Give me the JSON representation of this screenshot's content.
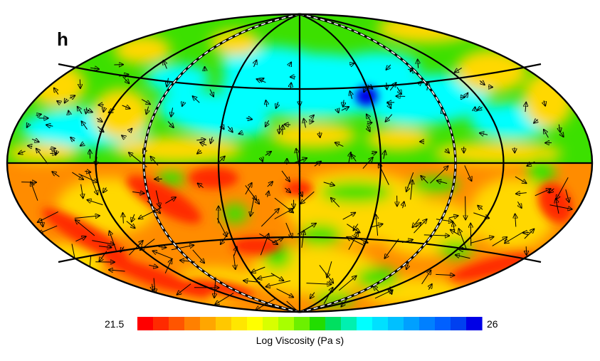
{
  "panel_label": "h",
  "colorbar": {
    "min_label": "21.5",
    "max_label": "26",
    "title": "Log Viscosity (Pa s)",
    "colors": [
      "#ff0000",
      "#ff2a00",
      "#ff5500",
      "#ff8000",
      "#ffa600",
      "#ffc800",
      "#ffe600",
      "#ffff00",
      "#d8ff00",
      "#a8ff00",
      "#6cf000",
      "#22dd00",
      "#00e060",
      "#00f0b0",
      "#00ffff",
      "#00e0ff",
      "#00c0ff",
      "#00a0ff",
      "#0080ff",
      "#0060ff",
      "#0040f0",
      "#0000e6"
    ]
  },
  "palette": {
    "red": "#ff2a00",
    "orange": "#ff8c00",
    "yellow": "#ffd800",
    "green": "#3ce000",
    "cyan": "#00ffff",
    "blue": "#0000e6"
  },
  "projection": "hammer-aitoff"
}
